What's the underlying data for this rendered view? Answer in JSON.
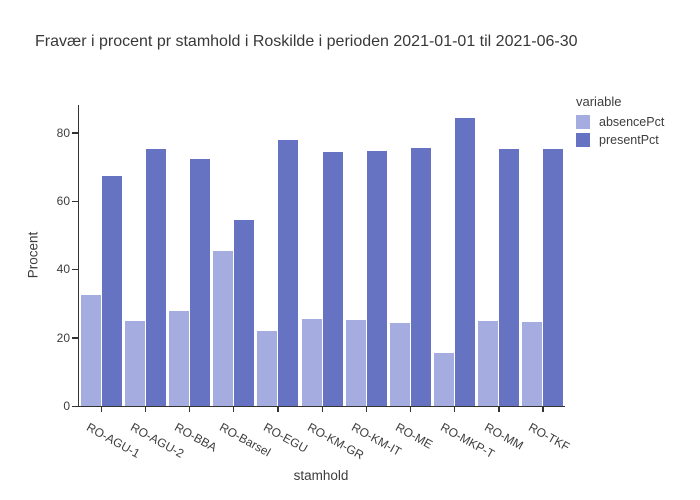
{
  "chart_data": {
    "type": "bar",
    "title": "Fravær i procent pr stamhold i Roskilde i perioden 2021-01-01 til 2021-06-30",
    "xlabel": "stamhold",
    "ylabel": "Procent",
    "legend_title": "variable",
    "legend_position": "top-right",
    "grid": false,
    "categories": [
      "RO-AGU-1",
      "RO-AGU-2",
      "RO-BBA",
      "RO-Barsel",
      "RO-EGU",
      "RO-KM-GR",
      "RO-KM-IT",
      "RO-ME",
      "RO-MKP-T",
      "RO-MM",
      "RO-TKF"
    ],
    "series": [
      {
        "name": "absencePct",
        "color": "#a4ace0",
        "values": [
          32.5,
          24.8,
          27.7,
          45.4,
          22.0,
          25.6,
          25.2,
          24.3,
          15.6,
          24.8,
          24.6
        ]
      },
      {
        "name": "presentPct",
        "color": "#6673c2",
        "values": [
          67.4,
          75.2,
          72.3,
          54.6,
          78.0,
          74.4,
          74.8,
          75.7,
          84.3,
          75.2,
          75.4
        ]
      }
    ],
    "ylim": [
      0,
      88.2
    ],
    "yticks": [
      0,
      20,
      40,
      60,
      80
    ],
    "axis_color": "#333333",
    "text_color": "#3d3d3d"
  }
}
